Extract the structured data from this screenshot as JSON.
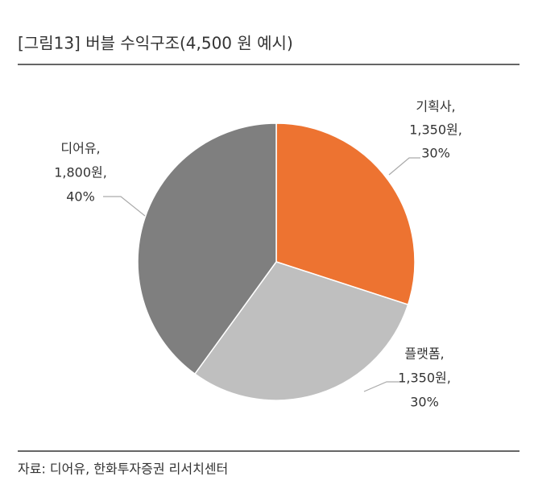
{
  "chart_data": {
    "type": "pie",
    "title": "[그림13]  버블 수익구조(4,500 원 예시)",
    "source": "자료: 디어유, 한화투자증권 리서치센터",
    "categories": [
      "기획사,",
      "플랫폼,",
      "디어유,"
    ],
    "values": [
      1350,
      1350,
      1800
    ],
    "value_labels": [
      "1,350원,",
      "1,350원,",
      "1,800원,"
    ],
    "percents": [
      30,
      30,
      40
    ],
    "percent_labels": [
      "30%",
      "30%",
      "40%"
    ],
    "colors": [
      "#ed7331",
      "#bfbfbf",
      "#7f7f7f"
    ]
  }
}
